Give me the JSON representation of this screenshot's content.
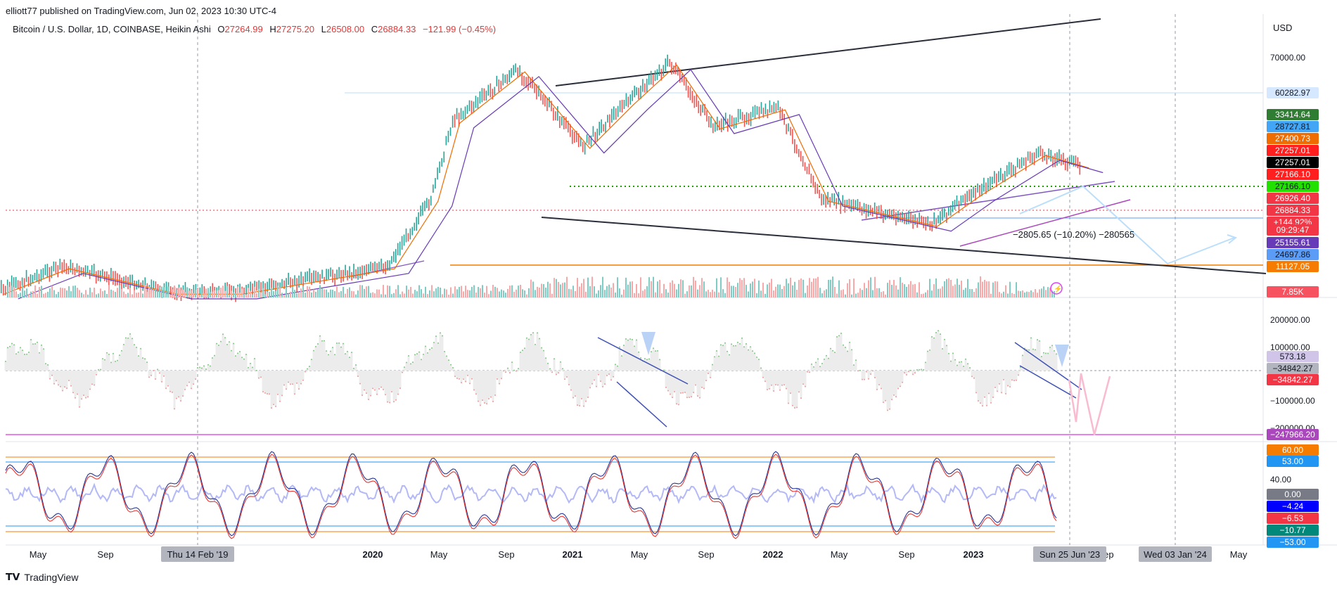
{
  "header": {
    "published_by": "elliott77 published on TradingView.com, Jun 02, 2023 10:30 UTC-4",
    "symbol": "Bitcoin / U.S. Dollar, 1D, COINBASE, Heikin Ashi",
    "o_label": "O",
    "o_value": "27264.99",
    "h_label": "H",
    "h_value": "27275.20",
    "l_label": "L",
    "l_value": "26508.00",
    "c_label": "C",
    "c_value": "26884.33",
    "change": "−121.99 (−0.45%)"
  },
  "currency": "USD",
  "annotation_text": "−2805.65 (−10.20%) −280565",
  "footer": {
    "logo_text": "TradingView"
  },
  "chart_data": [
    {
      "type": "line",
      "pane": "price",
      "title": "Bitcoin / U.S. Dollar, 1D, COINBASE, Heikin Ashi",
      "ylabel": "USD",
      "y_ticks": [
        "70000.00"
      ],
      "x_tick_labels": [
        "May",
        "Sep",
        "2020",
        "May",
        "Sep",
        "2021",
        "May",
        "Sep",
        "2022",
        "May",
        "Sep",
        "2023",
        "Sep",
        "May"
      ],
      "x_cursor_labels": [
        "Thu 14 Feb '19",
        "Sun 25 Jun '23",
        "Wed 03 Jan '24"
      ],
      "series": [
        {
          "name": "",
          "x": [
            "2019-04",
            "2019-07",
            "2019-12",
            "2020-03",
            "2020-10",
            "2020-12",
            "2021-01",
            "2021-04",
            "2021-07",
            "2021-09",
            "2021-11",
            "2022-01",
            "2022-04",
            "2022-06",
            "2022-11",
            "2023-01",
            "2023-04",
            "2023-06"
          ],
          "values": [
            5000,
            11000,
            7200,
            5000,
            11000,
            20000,
            40000,
            63000,
            32000,
            47000,
            67000,
            38000,
            45000,
            20000,
            16000,
            21000,
            30000,
            26884
          ]
        }
      ],
      "price_labels": [
        {
          "value": "60282.97",
          "color": "#d6e8ff",
          "text_color": "#131722"
        },
        {
          "value": "33414.64",
          "color": "#2e7d32",
          "text_color": "#ffffff"
        },
        {
          "value": "28727.81",
          "color": "#42a5f5",
          "text_color": "#131722"
        },
        {
          "value": "27400.73",
          "color": "#ef6c00",
          "text_color": "#ffffff"
        },
        {
          "value": "27257.01",
          "color": "#ff1f1f",
          "text_color": "#ffffff"
        },
        {
          "value": "27257.01",
          "color": "#000000",
          "text_color": "#ffffff"
        },
        {
          "value": "27166.10",
          "color": "#ff1f1f",
          "text_color": "#ffffff"
        },
        {
          "value": "27166.10",
          "color": "#22e000",
          "text_color": "#131722"
        },
        {
          "value": "26926.40",
          "color": "#f23645",
          "text_color": "#ffffff"
        },
        {
          "value": "26884.33",
          "color": "#f23645",
          "text_color": "#ffffff"
        },
        {
          "value": "+144.92%",
          "color": "#f23645",
          "text_color": "#ffffff"
        },
        {
          "value": "09:29:47",
          "color": "#f23645",
          "text_color": "#ffffff"
        },
        {
          "value": "25155.61",
          "color": "#673ab7",
          "text_color": "#ffffff"
        },
        {
          "value": "24697.86",
          "color": "#5b9cf6",
          "text_color": "#131722"
        },
        {
          "value": "11127.05",
          "color": "#f57c00",
          "text_color": "#ffffff"
        },
        {
          "value": "7.85K",
          "color": "#f7525f",
          "text_color": "#ffffff"
        }
      ]
    },
    {
      "type": "area",
      "pane": "oscillator",
      "y_ticks": [
        "200000.00",
        "100000.00",
        "−100000.00",
        "−200000.00"
      ],
      "price_labels": [
        {
          "value": "573.18",
          "color": "#d1c4e9",
          "text_color": "#131722"
        },
        {
          "value": "−34842.27",
          "color": "#b2b5be",
          "text_color": "#131722"
        },
        {
          "value": "−34842.27",
          "color": "#f23645",
          "text_color": "#ffffff"
        },
        {
          "value": "−247966.20",
          "color": "#ab47bc",
          "text_color": "#ffffff"
        }
      ]
    },
    {
      "type": "line",
      "pane": "stochastic",
      "y_ticks": [
        "40.00"
      ],
      "price_labels": [
        {
          "value": "60.00",
          "color": "#f57c00",
          "text_color": "#ffffff"
        },
        {
          "value": "53.00",
          "color": "#2196f3",
          "text_color": "#ffffff"
        },
        {
          "value": "0.00",
          "color": "#787b86",
          "text_color": "#ffffff"
        },
        {
          "value": "−4.24",
          "color": "#0000ff",
          "text_color": "#ffffff"
        },
        {
          "value": "−6.53",
          "color": "#f23645",
          "text_color": "#ffffff"
        },
        {
          "value": "−10.77",
          "color": "#00897b",
          "text_color": "#ffffff"
        },
        {
          "value": "−53.00",
          "color": "#2196f3",
          "text_color": "#ffffff"
        }
      ]
    }
  ]
}
